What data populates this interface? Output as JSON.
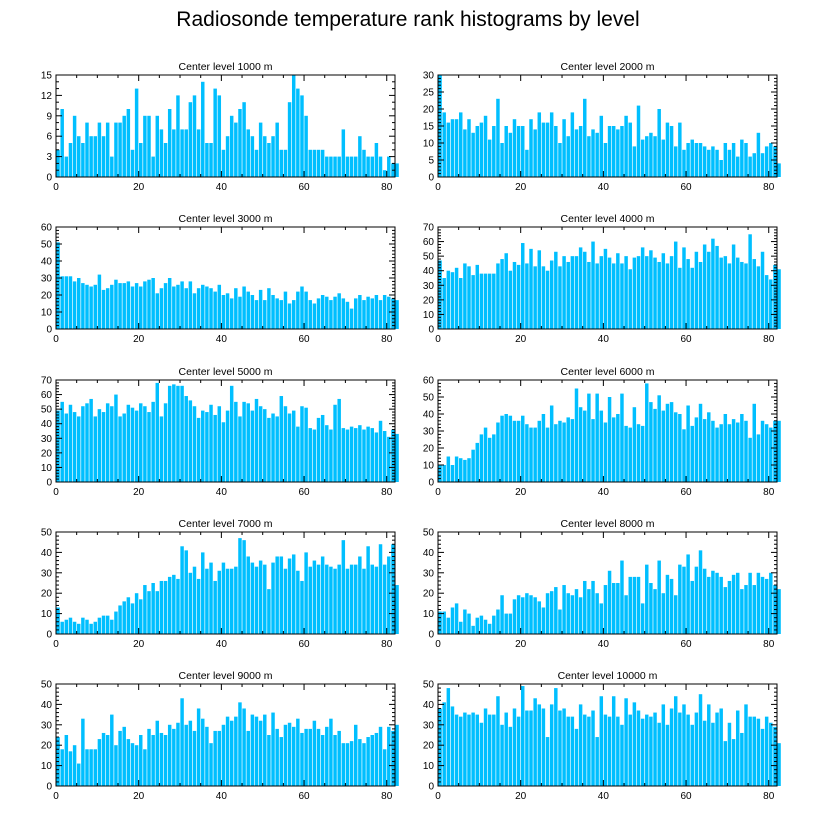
{
  "title": "Radiosonde temperature rank histograms by level",
  "colors": {
    "bar": "#00bfff",
    "frame": "#000000"
  },
  "chart_data": [
    {
      "type": "bar",
      "title": "Center level 1000 m",
      "xlim": [
        0,
        82
      ],
      "ylim": [
        0,
        15
      ],
      "xticks": [
        0,
        20,
        40,
        60,
        80
      ],
      "yticks": [
        0,
        3,
        6,
        9,
        12,
        15
      ],
      "values": [
        4,
        10,
        3,
        5,
        9,
        6,
        5,
        8,
        6,
        6,
        8,
        6,
        8,
        3,
        8,
        8,
        9,
        10,
        4,
        13,
        5,
        9,
        9,
        3,
        9,
        7,
        5,
        10,
        7,
        12,
        7,
        7,
        11,
        12,
        7,
        14,
        5,
        5,
        13,
        12,
        4,
        6,
        9,
        8,
        10,
        11,
        7,
        6,
        4,
        8,
        6,
        5,
        6,
        8,
        4,
        4,
        11,
        15,
        13,
        12,
        9,
        4,
        4,
        4,
        4,
        3,
        3,
        3,
        3,
        7,
        3,
        3,
        3,
        6,
        4,
        3,
        3,
        5,
        3,
        1,
        3,
        2,
        2
      ]
    },
    {
      "type": "bar",
      "title": "Center level 2000 m",
      "xlim": [
        0,
        82
      ],
      "ylim": [
        0,
        30
      ],
      "xticks": [
        0,
        20,
        40,
        60,
        80
      ],
      "yticks": [
        0,
        5,
        10,
        15,
        20,
        25,
        30
      ],
      "values": [
        30,
        19,
        16,
        17,
        17,
        19,
        14,
        17,
        13,
        15,
        16,
        18,
        11,
        15,
        23,
        10,
        15,
        13,
        17,
        15,
        15,
        8,
        17,
        14,
        19,
        16,
        16,
        19,
        15,
        10,
        17,
        12,
        19,
        14,
        15,
        23,
        12,
        14,
        13,
        18,
        10,
        15,
        15,
        14,
        15,
        18,
        16,
        9,
        21,
        11,
        12,
        13,
        12,
        20,
        11,
        16,
        15,
        9,
        16,
        8,
        10,
        11,
        10,
        10,
        9,
        8,
        9,
        8,
        5,
        10,
        8,
        10,
        6,
        11,
        10,
        6,
        7,
        13,
        7,
        9,
        10,
        9,
        4
      ]
    },
    {
      "type": "bar",
      "title": "Center level 3000 m",
      "xlim": [
        0,
        82
      ],
      "ylim": [
        0,
        60
      ],
      "xticks": [
        0,
        20,
        40,
        60,
        80
      ],
      "yticks": [
        0,
        10,
        20,
        30,
        40,
        50,
        60
      ],
      "values": [
        51,
        31,
        31,
        31,
        28,
        30,
        27,
        26,
        25,
        26,
        32,
        23,
        24,
        26,
        29,
        27,
        27,
        28,
        25,
        27,
        25,
        28,
        29,
        30,
        21,
        24,
        27,
        30,
        25,
        26,
        28,
        24,
        28,
        21,
        24,
        26,
        25,
        24,
        22,
        26,
        20,
        21,
        18,
        24,
        19,
        25,
        22,
        20,
        17,
        23,
        17,
        24,
        20,
        18,
        17,
        22,
        15,
        17,
        22,
        25,
        22,
        17,
        15,
        18,
        20,
        19,
        17,
        19,
        21,
        18,
        16,
        12,
        18,
        20,
        17,
        19,
        18,
        20,
        17,
        20,
        19,
        18,
        17
      ]
    },
    {
      "type": "bar",
      "title": "Center level 4000 m",
      "xlim": [
        0,
        82
      ],
      "ylim": [
        0,
        70
      ],
      "xticks": [
        0,
        20,
        40,
        60,
        80
      ],
      "yticks": [
        0,
        10,
        20,
        30,
        40,
        50,
        60,
        70
      ],
      "values": [
        47,
        35,
        40,
        39,
        42,
        35,
        45,
        43,
        37,
        44,
        38,
        38,
        38,
        38,
        45,
        48,
        52,
        40,
        46,
        44,
        59,
        45,
        55,
        43,
        54,
        43,
        40,
        47,
        53,
        43,
        50,
        46,
        50,
        50,
        56,
        53,
        46,
        60,
        45,
        50,
        55,
        49,
        45,
        52,
        45,
        50,
        41,
        49,
        50,
        56,
        50,
        54,
        49,
        46,
        52,
        45,
        50,
        60,
        42,
        56,
        48,
        42,
        53,
        46,
        58,
        53,
        62,
        57,
        49,
        50,
        45,
        58,
        49,
        46,
        45,
        65,
        48,
        43,
        53,
        37,
        34,
        44,
        41
      ]
    },
    {
      "type": "bar",
      "title": "Center level 5000 m",
      "xlim": [
        0,
        82
      ],
      "ylim": [
        0,
        70
      ],
      "xticks": [
        0,
        20,
        40,
        60,
        80
      ],
      "yticks": [
        0,
        10,
        20,
        30,
        40,
        50,
        60,
        70
      ],
      "values": [
        49,
        55,
        47,
        53,
        48,
        45,
        52,
        54,
        57,
        45,
        50,
        48,
        54,
        52,
        60,
        45,
        47,
        53,
        51,
        49,
        54,
        52,
        48,
        55,
        68,
        45,
        54,
        66,
        67,
        66,
        66,
        59,
        56,
        52,
        44,
        49,
        48,
        53,
        46,
        52,
        41,
        49,
        66,
        55,
        45,
        55,
        54,
        49,
        57,
        52,
        50,
        44,
        47,
        45,
        59,
        52,
        47,
        49,
        38,
        52,
        51,
        37,
        36,
        44,
        46,
        39,
        36,
        53,
        57,
        37,
        36,
        38,
        37,
        39,
        36,
        38,
        37,
        34,
        42,
        35,
        31,
        36,
        33
      ]
    },
    {
      "type": "bar",
      "title": "Center level 6000 m",
      "xlim": [
        0,
        82
      ],
      "ylim": [
        0,
        60
      ],
      "xticks": [
        0,
        20,
        40,
        60,
        80
      ],
      "yticks": [
        0,
        10,
        20,
        30,
        40,
        50,
        60
      ],
      "values": [
        10,
        10,
        15,
        10,
        15,
        14,
        13,
        14,
        19,
        23,
        28,
        32,
        26,
        28,
        35,
        39,
        40,
        39,
        36,
        36,
        39,
        34,
        32,
        32,
        36,
        40,
        32,
        45,
        34,
        36,
        35,
        38,
        37,
        55,
        44,
        42,
        52,
        37,
        52,
        42,
        35,
        50,
        38,
        40,
        52,
        33,
        32,
        44,
        34,
        33,
        58,
        47,
        43,
        51,
        42,
        46,
        47,
        41,
        40,
        31,
        45,
        33,
        38,
        46,
        37,
        41,
        36,
        32,
        34,
        40,
        34,
        37,
        35,
        40,
        36,
        26,
        46,
        28,
        36,
        34,
        32,
        36,
        36
      ]
    },
    {
      "type": "bar",
      "title": "Center level 7000 m",
      "xlim": [
        0,
        82
      ],
      "ylim": [
        0,
        50
      ],
      "xticks": [
        0,
        20,
        40,
        60,
        80
      ],
      "yticks": [
        0,
        10,
        20,
        30,
        40,
        50
      ],
      "values": [
        13,
        6,
        7,
        8,
        6,
        5,
        8,
        7,
        5,
        6,
        8,
        9,
        9,
        7,
        11,
        14,
        16,
        18,
        15,
        20,
        17,
        24,
        21,
        25,
        21,
        26,
        26,
        28,
        29,
        27,
        43,
        41,
        30,
        33,
        27,
        40,
        32,
        35,
        26,
        31,
        35,
        32,
        32,
        33,
        47,
        46,
        38,
        35,
        33,
        36,
        34,
        22,
        35,
        38,
        38,
        32,
        37,
        39,
        31,
        26,
        40,
        33,
        36,
        34,
        38,
        34,
        33,
        32,
        34,
        46,
        32,
        34,
        34,
        38,
        32,
        43,
        34,
        33,
        44,
        34,
        38,
        44,
        24
      ]
    },
    {
      "type": "bar",
      "title": "Center level 8000 m",
      "xlim": [
        0,
        82
      ],
      "ylim": [
        0,
        50
      ],
      "xticks": [
        0,
        20,
        40,
        60,
        80
      ],
      "yticks": [
        0,
        10,
        20,
        30,
        40,
        50
      ],
      "values": [
        11,
        11,
        8,
        13,
        15,
        6,
        12,
        10,
        4,
        8,
        9,
        7,
        5,
        9,
        12,
        19,
        10,
        10,
        17,
        19,
        18,
        20,
        19,
        18,
        16,
        13,
        20,
        21,
        23,
        12,
        24,
        20,
        19,
        22,
        18,
        26,
        22,
        26,
        20,
        15,
        24,
        31,
        25,
        25,
        36,
        19,
        28,
        28,
        28,
        15,
        34,
        25,
        22,
        36,
        20,
        29,
        27,
        19,
        34,
        33,
        39,
        26,
        33,
        41,
        32,
        28,
        31,
        30,
        28,
        23,
        26,
        29,
        30,
        22,
        24,
        30,
        24,
        30,
        28,
        27,
        30,
        24,
        22
      ]
    },
    {
      "type": "bar",
      "title": "Center level 9000 m",
      "xlim": [
        0,
        82
      ],
      "ylim": [
        0,
        50
      ],
      "xticks": [
        0,
        20,
        40,
        60,
        80
      ],
      "yticks": [
        0,
        10,
        20,
        30,
        40,
        50
      ],
      "values": [
        24,
        18,
        25,
        17,
        20,
        11,
        33,
        18,
        18,
        18,
        23,
        26,
        25,
        35,
        20,
        27,
        29,
        23,
        21,
        20,
        25,
        18,
        28,
        25,
        32,
        26,
        25,
        30,
        28,
        31,
        43,
        30,
        32,
        27,
        38,
        33,
        29,
        21,
        27,
        27,
        30,
        34,
        32,
        34,
        41,
        38,
        27,
        35,
        34,
        32,
        35,
        25,
        36,
        28,
        24,
        30,
        31,
        29,
        33,
        26,
        28,
        28,
        32,
        28,
        25,
        29,
        33,
        25,
        27,
        21,
        21,
        22,
        30,
        23,
        21,
        24,
        25,
        26,
        29,
        18,
        29,
        27,
        30
      ]
    },
    {
      "type": "bar",
      "title": "Center level 10000 m",
      "xlim": [
        0,
        82
      ],
      "ylim": [
        0,
        50
      ],
      "xticks": [
        0,
        20,
        40,
        60,
        80
      ],
      "yticks": [
        0,
        10,
        20,
        30,
        40,
        50
      ],
      "values": [
        38,
        41,
        48,
        39,
        35,
        34,
        36,
        35,
        36,
        35,
        31,
        38,
        35,
        35,
        44,
        30,
        36,
        29,
        38,
        34,
        49,
        37,
        37,
        43,
        40,
        38,
        24,
        40,
        48,
        37,
        38,
        34,
        34,
        28,
        40,
        35,
        34,
        37,
        24,
        44,
        35,
        34,
        44,
        34,
        30,
        43,
        35,
        41,
        37,
        33,
        35,
        34,
        36,
        31,
        40,
        30,
        38,
        44,
        36,
        40,
        35,
        30,
        36,
        45,
        32,
        40,
        31,
        36,
        38,
        22,
        31,
        23,
        37,
        26,
        40,
        34,
        34,
        33,
        28,
        34,
        31,
        29,
        21
      ]
    }
  ]
}
